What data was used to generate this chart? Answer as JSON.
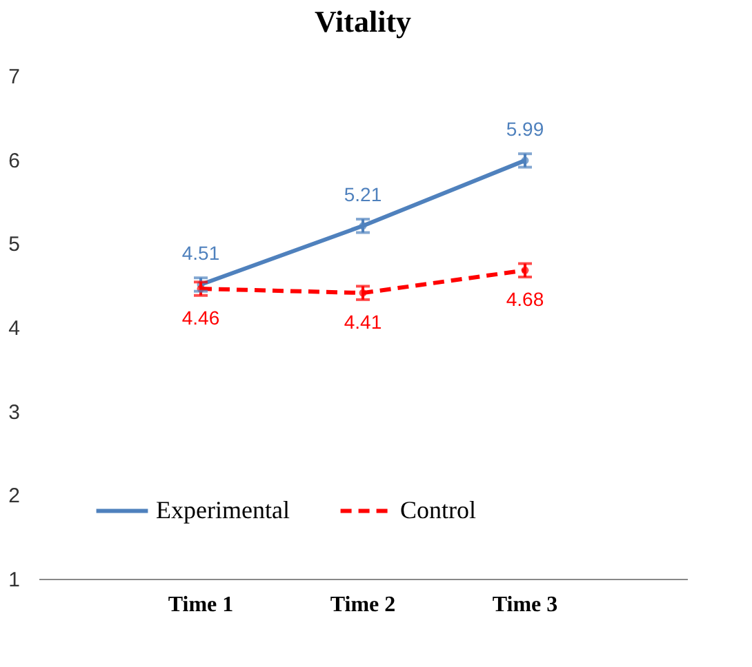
{
  "chart_data": {
    "type": "line",
    "title": "Vitality",
    "categories": [
      "Time 1",
      "Time 2",
      "Time 3"
    ],
    "series": [
      {
        "name": "Experimental",
        "color": "#4f81bd",
        "values": [
          4.51,
          5.21,
          5.99
        ],
        "errors": [
          0.08,
          0.08,
          0.08
        ],
        "line_style": "solid",
        "marker": "circle"
      },
      {
        "name": "Control",
        "color": "#ff0000",
        "values": [
          4.46,
          4.41,
          4.68
        ],
        "errors": [
          0.08,
          0.08,
          0.08
        ],
        "line_style": "dashed",
        "marker": "circle"
      }
    ],
    "ylim": [
      1,
      7
    ],
    "yticks": [
      1,
      2,
      3,
      4,
      5,
      6,
      7
    ],
    "grid": false,
    "legend": "bottom",
    "data_labels": true
  }
}
